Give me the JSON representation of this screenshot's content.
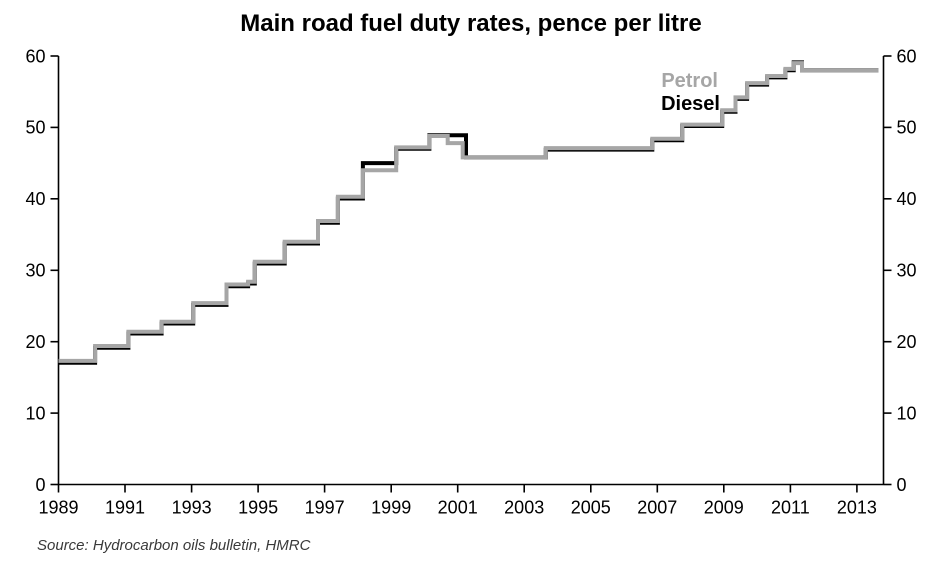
{
  "chart_data": {
    "type": "line",
    "style": "step",
    "title": "Main road fuel duty rates, pence per litre",
    "unit": "pence per litre",
    "source_note": "Source: Hydrocarbon oils bulletin, HMRC",
    "legend": {
      "position": "inside-top-right",
      "petrol_label": "Petrol",
      "diesel_label": "Diesel"
    },
    "x_axis": {
      "min": 1989,
      "max": 2013.8,
      "grid": false,
      "tick_values": [
        1989,
        1991,
        1993,
        1995,
        1997,
        1999,
        2001,
        2003,
        2005,
        2007,
        2009,
        2011,
        2013
      ],
      "tick_labels": [
        "1989",
        "1991",
        "1993",
        "1995",
        "1997",
        "1999",
        "2001",
        "2003",
        "2005",
        "2007",
        "2009",
        "2011",
        "2013"
      ]
    },
    "y_axis": {
      "min": 0,
      "max": 60,
      "grid": false,
      "sides": "both",
      "tick_values": [
        0,
        10,
        20,
        30,
        40,
        50,
        60
      ],
      "tick_labels": [
        "0",
        "10",
        "20",
        "30",
        "40",
        "50",
        "60"
      ]
    },
    "series": [
      {
        "name": "Petrol",
        "color": "#a6a6a6",
        "end_x": 2013.65,
        "steps": [
          [
            1989.0,
            17.3
          ],
          [
            1990.1,
            19.4
          ],
          [
            1991.1,
            21.4
          ],
          [
            1992.1,
            22.8
          ],
          [
            1993.05,
            25.4
          ],
          [
            1994.05,
            28.0
          ],
          [
            1994.7,
            28.4
          ],
          [
            1994.9,
            31.2
          ],
          [
            1995.8,
            34.0
          ],
          [
            1996.8,
            36.9
          ],
          [
            1997.4,
            40.3
          ],
          [
            1998.15,
            44.0
          ],
          [
            1999.15,
            47.2
          ],
          [
            2000.15,
            48.8
          ],
          [
            2000.7,
            47.8
          ],
          [
            2001.15,
            45.8
          ],
          [
            2003.65,
            47.1
          ],
          [
            2006.85,
            48.4
          ],
          [
            2007.75,
            50.4
          ],
          [
            2008.95,
            52.4
          ],
          [
            2009.35,
            54.2
          ],
          [
            2009.7,
            56.2
          ],
          [
            2010.3,
            57.2
          ],
          [
            2010.85,
            58.2
          ],
          [
            2011.1,
            59.0
          ],
          [
            2011.35,
            58.0
          ]
        ]
      },
      {
        "name": "Diesel",
        "color": "#000000",
        "end_x": 2013.65,
        "steps": [
          [
            1989.0,
            17.05
          ],
          [
            1990.1,
            19.15
          ],
          [
            1991.1,
            21.15
          ],
          [
            1992.1,
            22.55
          ],
          [
            1993.05,
            25.15
          ],
          [
            1994.05,
            27.75
          ],
          [
            1994.7,
            28.15
          ],
          [
            1994.9,
            30.95
          ],
          [
            1995.8,
            33.75
          ],
          [
            1996.8,
            36.65
          ],
          [
            1997.4,
            40.05
          ],
          [
            1998.15,
            45.0
          ],
          [
            1999.15,
            47.0
          ],
          [
            2000.15,
            48.9
          ],
          [
            2001.25,
            45.8
          ],
          [
            2003.65,
            46.9
          ],
          [
            2006.85,
            48.2
          ],
          [
            2007.75,
            50.2
          ],
          [
            2008.95,
            52.2
          ],
          [
            2009.35,
            54.0
          ],
          [
            2009.7,
            56.0
          ],
          [
            2010.3,
            57.0
          ],
          [
            2010.85,
            58.0
          ],
          [
            2011.1,
            59.1
          ],
          [
            2011.35,
            58.0
          ]
        ]
      }
    ]
  },
  "colors": {
    "background": "#ffffff",
    "axis": "#000000",
    "tick_text": "#000000",
    "title_text": "#000000",
    "source_text": "#3a3a3a",
    "petrol": "#a6a6a6",
    "diesel": "#000000"
  }
}
